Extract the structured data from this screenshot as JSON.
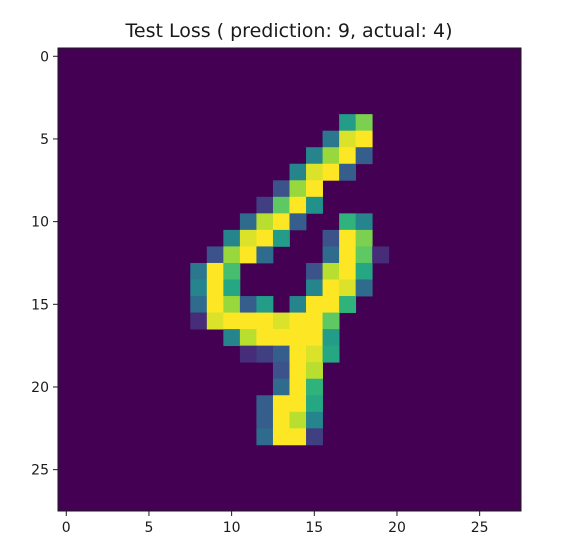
{
  "chart_data": {
    "type": "heatmap",
    "title": "Test Loss ( prediction: 9, actual: 4)",
    "xlabel": "",
    "ylabel": "",
    "xlim": [
      -0.5,
      27.5
    ],
    "ylim": [
      27.5,
      -0.5
    ],
    "xticks": [
      0,
      5,
      10,
      15,
      20,
      25
    ],
    "yticks": [
      0,
      5,
      10,
      15,
      20,
      25
    ],
    "xtick_labels": [
      "0",
      "5",
      "10",
      "15",
      "20",
      "25"
    ],
    "ytick_labels": [
      "0",
      "5",
      "10",
      "15",
      "20",
      "25"
    ],
    "grid": false,
    "colormap": "viridis",
    "value_range": [
      0,
      1
    ],
    "colors": {
      "background": "#440154",
      "axes": "#1a1a1a"
    },
    "pixels": [
      [
        0.55,
        4,
        17
      ],
      [
        0.8,
        4,
        18
      ],
      [
        0.4,
        5,
        16
      ],
      [
        0.95,
        5,
        17
      ],
      [
        1.0,
        5,
        18
      ],
      [
        0.45,
        6,
        15
      ],
      [
        0.85,
        6,
        16
      ],
      [
        1.0,
        6,
        17
      ],
      [
        0.3,
        6,
        18
      ],
      [
        0.45,
        7,
        14
      ],
      [
        0.95,
        7,
        15
      ],
      [
        1.0,
        7,
        16
      ],
      [
        0.3,
        7,
        17
      ],
      [
        0.25,
        8,
        13
      ],
      [
        0.85,
        8,
        14
      ],
      [
        1.0,
        8,
        15
      ],
      [
        0.2,
        9,
        12
      ],
      [
        0.75,
        9,
        13
      ],
      [
        1.0,
        9,
        14
      ],
      [
        0.5,
        9,
        15
      ],
      [
        0.35,
        10,
        11
      ],
      [
        0.9,
        10,
        12
      ],
      [
        1.0,
        10,
        13
      ],
      [
        0.3,
        10,
        14
      ],
      [
        0.65,
        10,
        17
      ],
      [
        0.45,
        10,
        18
      ],
      [
        0.45,
        11,
        10
      ],
      [
        0.95,
        11,
        11
      ],
      [
        1.0,
        11,
        12
      ],
      [
        0.55,
        11,
        13
      ],
      [
        0.25,
        11,
        16
      ],
      [
        1.0,
        11,
        17
      ],
      [
        0.8,
        11,
        18
      ],
      [
        0.25,
        12,
        9
      ],
      [
        0.85,
        12,
        10
      ],
      [
        1.0,
        12,
        11
      ],
      [
        0.35,
        12,
        12
      ],
      [
        0.35,
        12,
        16
      ],
      [
        1.0,
        12,
        17
      ],
      [
        0.75,
        12,
        18
      ],
      [
        0.15,
        12,
        19
      ],
      [
        0.4,
        13,
        8
      ],
      [
        1.0,
        13,
        9
      ],
      [
        0.7,
        13,
        10
      ],
      [
        0.25,
        13,
        15
      ],
      [
        0.9,
        13,
        16
      ],
      [
        1.0,
        13,
        17
      ],
      [
        0.6,
        13,
        18
      ],
      [
        0.45,
        14,
        8
      ],
      [
        1.0,
        14,
        9
      ],
      [
        0.6,
        14,
        10
      ],
      [
        0.45,
        14,
        15
      ],
      [
        1.0,
        14,
        16
      ],
      [
        0.95,
        14,
        17
      ],
      [
        0.35,
        14,
        18
      ],
      [
        0.35,
        15,
        8
      ],
      [
        1.0,
        15,
        9
      ],
      [
        0.85,
        15,
        10
      ],
      [
        0.3,
        15,
        11
      ],
      [
        0.55,
        15,
        12
      ],
      [
        0.45,
        15,
        14
      ],
      [
        1.0,
        15,
        15
      ],
      [
        1.0,
        15,
        16
      ],
      [
        0.65,
        15,
        17
      ],
      [
        0.15,
        16,
        8
      ],
      [
        0.95,
        16,
        9
      ],
      [
        1.0,
        16,
        10
      ],
      [
        1.0,
        16,
        11
      ],
      [
        1.0,
        16,
        12
      ],
      [
        0.95,
        16,
        13
      ],
      [
        1.0,
        16,
        14
      ],
      [
        1.0,
        16,
        15
      ],
      [
        0.75,
        16,
        16
      ],
      [
        0.45,
        17,
        10
      ],
      [
        0.9,
        17,
        11
      ],
      [
        1.0,
        17,
        12
      ],
      [
        1.0,
        17,
        13
      ],
      [
        1.0,
        17,
        14
      ],
      [
        1.0,
        17,
        15
      ],
      [
        0.55,
        17,
        16
      ],
      [
        0.15,
        18,
        11
      ],
      [
        0.2,
        18,
        12
      ],
      [
        0.3,
        18,
        13
      ],
      [
        1.0,
        18,
        14
      ],
      [
        0.95,
        18,
        15
      ],
      [
        0.6,
        18,
        16
      ],
      [
        0.25,
        19,
        13
      ],
      [
        1.0,
        19,
        14
      ],
      [
        0.9,
        19,
        15
      ],
      [
        0.35,
        20,
        13
      ],
      [
        1.0,
        20,
        14
      ],
      [
        0.65,
        20,
        15
      ],
      [
        0.3,
        21,
        12
      ],
      [
        1.0,
        21,
        13
      ],
      [
        1.0,
        21,
        14
      ],
      [
        0.6,
        21,
        15
      ],
      [
        0.3,
        22,
        12
      ],
      [
        1.0,
        22,
        13
      ],
      [
        0.9,
        22,
        14
      ],
      [
        0.45,
        22,
        15
      ],
      [
        0.35,
        23,
        12
      ],
      [
        1.0,
        23,
        13
      ],
      [
        1.0,
        23,
        14
      ],
      [
        0.2,
        23,
        15
      ]
    ]
  }
}
